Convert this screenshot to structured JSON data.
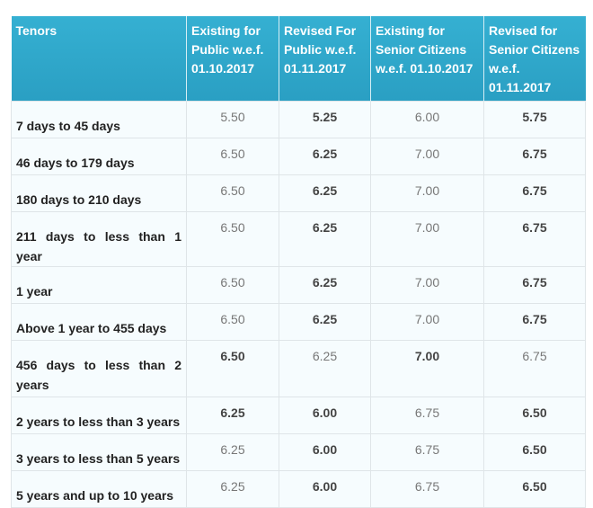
{
  "headers": [
    "Tenors",
    "Existing for Public w.e.f. 01.10.2017",
    "Revised For Public w.e.f. 01.11.2017",
    "Existing for Senior Citizens w.e.f. 01.10.2017",
    "Revised for Senior Citizens w.e.f. 01.11.2017"
  ],
  "rows": [
    {
      "tenor": "7 days to 45 days",
      "values": [
        "5.50",
        "5.25",
        "6.00",
        "5.75"
      ],
      "bold": [
        false,
        true,
        false,
        true
      ]
    },
    {
      "tenor": "46 days to 179 days",
      "values": [
        "6.50",
        "6.25",
        "7.00",
        "6.75"
      ],
      "bold": [
        false,
        true,
        false,
        true
      ]
    },
    {
      "tenor": "180 days to 210 days",
      "values": [
        "6.50",
        "6.25",
        "7.00",
        "6.75"
      ],
      "bold": [
        false,
        true,
        false,
        true
      ]
    },
    {
      "tenor": "211 days to less than 1 year",
      "values": [
        "6.50",
        "6.25",
        "7.00",
        "6.75"
      ],
      "bold": [
        false,
        true,
        false,
        true
      ]
    },
    {
      "tenor": "1 year",
      "values": [
        "6.50",
        "6.25",
        "7.00",
        "6.75"
      ],
      "bold": [
        false,
        true,
        false,
        true
      ]
    },
    {
      "tenor": "Above 1 year to 455 days",
      "values": [
        "6.50",
        "6.25",
        "7.00",
        "6.75"
      ],
      "bold": [
        false,
        true,
        false,
        true
      ]
    },
    {
      "tenor": "456 days to less than 2 years",
      "values": [
        "6.50",
        "6.25",
        "7.00",
        "6.75"
      ],
      "bold": [
        true,
        false,
        true,
        false
      ]
    },
    {
      "tenor": "2 years to less than 3 years",
      "values": [
        "6.25",
        "6.00",
        "6.75",
        "6.50"
      ],
      "bold": [
        true,
        true,
        false,
        true
      ]
    },
    {
      "tenor": "3 years to less than 5 years",
      "values": [
        "6.25",
        "6.00",
        "6.75",
        "6.50"
      ],
      "bold": [
        false,
        true,
        false,
        true
      ]
    },
    {
      "tenor": "5 years and up to 10 years",
      "values": [
        "6.25",
        "6.00",
        "6.75",
        "6.50"
      ],
      "bold": [
        false,
        true,
        false,
        true
      ]
    }
  ]
}
